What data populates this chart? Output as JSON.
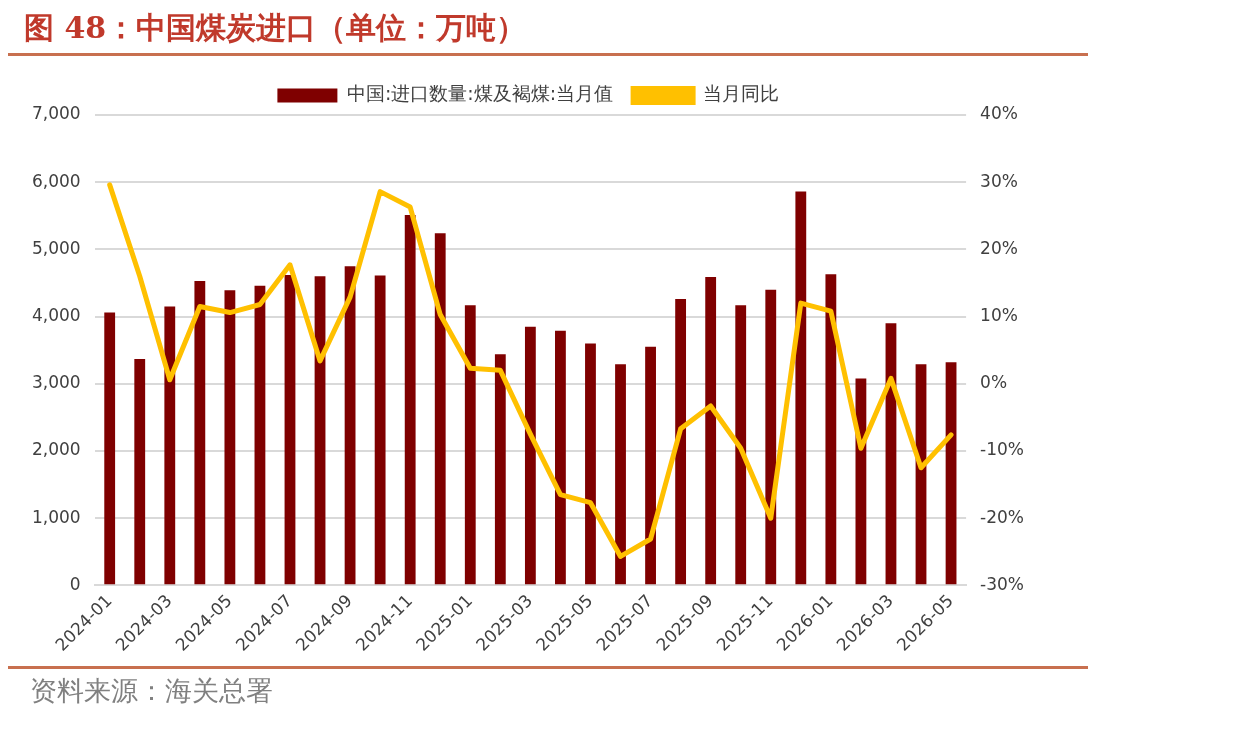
{
  "chart_data": {
    "type": "bar",
    "title": "图 48：中国煤炭进口（单位：万吨）",
    "categories": [
      "2024-01",
      null,
      "2024-03",
      null,
      "2024-05",
      null,
      "2024-07",
      null,
      "2024-09",
      null,
      "2024-11",
      null,
      "2025-01",
      null,
      "2025-03",
      null,
      "2025-05",
      null,
      "2025-07",
      null,
      "2025-09",
      null,
      "2025-11",
      null,
      "2026-01",
      null,
      "2026-03",
      null,
      "2026-05"
    ],
    "series": [
      {
        "name": "中国:进口数量:煤及褐煤:当月值",
        "color": "#7f0000",
        "values": [
          4060,
          3370,
          4150,
          4530,
          4390,
          4460,
          4620,
          4600,
          4750,
          4610,
          5510,
          5240,
          4170,
          3440,
          3850,
          3790,
          3600,
          3290,
          3550,
          4260,
          4590,
          4170,
          4400,
          5860,
          4630,
          3080,
          3900,
          3290,
          3320
        ]
      },
      {
        "name": "当月同比",
        "type": "line",
        "axis": "y2",
        "color": "#ffc000",
        "values": [
          29.6,
          16.0,
          0.6,
          11.5,
          10.6,
          11.8,
          17.7,
          3.4,
          12.9,
          28.6,
          26.3,
          10.3,
          2.3,
          2.0,
          -7.5,
          -16.5,
          -17.7,
          -25.7,
          -23.1,
          -6.7,
          -3.3,
          -9.6,
          -20.0,
          12.0,
          10.8,
          -9.6,
          0.8,
          -12.5,
          -7.6
        ]
      }
    ],
    "ylim": [
      0,
      7000
    ],
    "yticks": [
      0,
      {
        "value": 1000,
        "label": "1,000"
      },
      {
        "value": 2000,
        "label": "2,000"
      },
      {
        "value": 3000,
        "label": "3,000"
      },
      {
        "value": 4000,
        "label": "4,000"
      },
      {
        "value": 5000,
        "label": "5,000"
      },
      {
        "value": 6000,
        "label": "6,000"
      },
      {
        "value": 7000,
        "label": "7,000"
      }
    ],
    "y2lim": [
      -30,
      40
    ],
    "y2ticks": [
      {
        "value": -30,
        "label": "-30%"
      },
      {
        "value": -20,
        "label": "-20%"
      },
      {
        "value": -10,
        "label": "-10%"
      },
      {
        "value": 0,
        "label": "0%"
      },
      {
        "value": 10,
        "label": "10%"
      },
      {
        "value": 20,
        "label": "20%"
      },
      {
        "value": 30,
        "label": "30%"
      },
      {
        "value": 40,
        "label": "40%"
      }
    ],
    "grid": "y",
    "legend": "top",
    "marker": "none",
    "line_style": "solid",
    "annotations": [
      "资料来源：海关总署"
    ]
  }
}
